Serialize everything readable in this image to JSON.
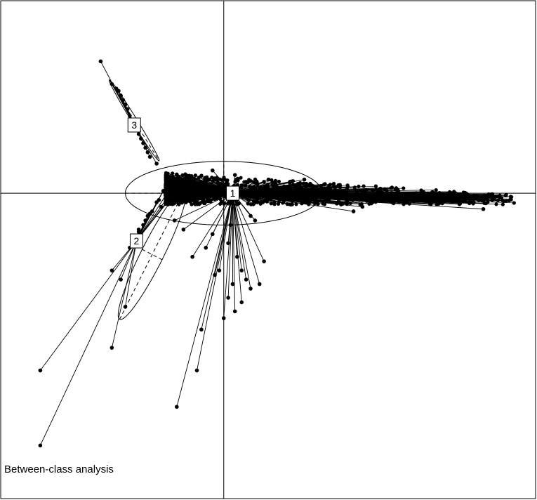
{
  "chart_data": {
    "type": "scatter",
    "title": "",
    "caption": "Between-class analysis",
    "xlabel": "",
    "ylabel": "",
    "xlim": [
      -1.0,
      1.4
    ],
    "ylim": [
      -1.35,
      0.85
    ],
    "grid": false,
    "legend": "none",
    "point_color": "#000000",
    "classes": [
      {
        "label": "1",
        "centroid": [
          0.04,
          0.0
        ],
        "ellipse": {
          "center": [
            0.0,
            0.0
          ],
          "rx": 0.44,
          "ry": 0.14,
          "angle": 0
        },
        "points": [
          [
            0.2,
            0.06
          ],
          [
            0.27,
            0.03
          ],
          [
            0.33,
            0.0
          ],
          [
            0.4,
            0.0
          ],
          [
            0.48,
            -0.02
          ],
          [
            0.55,
            -0.04
          ],
          [
            0.62,
            -0.06
          ],
          [
            0.7,
            0.02
          ],
          [
            0.78,
            0.01
          ],
          [
            0.86,
            0.0
          ],
          [
            0.94,
            0.0
          ],
          [
            1.02,
            -0.01
          ],
          [
            1.08,
            -0.03
          ],
          [
            1.12,
            -0.02
          ],
          [
            1.16,
            -0.07
          ],
          [
            1.2,
            -0.03
          ],
          [
            1.26,
            -0.01
          ],
          [
            0.58,
            -0.08
          ],
          [
            0.3,
            -0.05
          ],
          [
            0.15,
            -0.04
          ],
          [
            -0.1,
            0.05
          ],
          [
            -0.15,
            0.02
          ],
          [
            -0.2,
            0.0
          ],
          [
            -0.12,
            -0.04
          ],
          [
            -0.05,
            0.1
          ],
          [
            0.05,
            0.08
          ],
          [
            0.1,
            0.05
          ],
          [
            -0.18,
            0.06
          ],
          [
            0.36,
            0.06
          ],
          [
            0.52,
            0.03
          ],
          [
            -0.05,
            -0.18
          ],
          [
            -0.08,
            -0.24
          ],
          [
            -0.14,
            -0.28
          ],
          [
            0.02,
            -0.22
          ],
          [
            0.06,
            -0.28
          ],
          [
            0.08,
            -0.34
          ],
          [
            0.1,
            -0.38
          ],
          [
            0.12,
            -0.42
          ],
          [
            0.04,
            -0.4
          ],
          [
            0.02,
            -0.46
          ],
          [
            0.05,
            -0.52
          ],
          [
            0.16,
            -0.4
          ],
          [
            -0.02,
            -0.34
          ],
          [
            0.0,
            -0.55
          ],
          [
            -0.1,
            -0.6
          ],
          [
            -0.12,
            -0.78
          ],
          [
            -0.21,
            -0.94
          ],
          [
            -0.04,
            -0.36
          ],
          [
            -0.18,
            -0.16
          ],
          [
            0.03,
            -0.14
          ],
          [
            0.12,
            -0.1
          ],
          [
            0.14,
            -0.12
          ],
          [
            -0.22,
            -0.12
          ],
          [
            0.08,
            -0.48
          ],
          [
            0.18,
            -0.3
          ]
        ]
      },
      {
        "label": "2",
        "centroid": [
          -0.39,
          -0.21
        ],
        "ellipse": {
          "center": [
            -0.32,
            -0.27
          ],
          "rx": 0.32,
          "ry": 0.05,
          "angle": 63
        },
        "points": [
          [
            -0.82,
            -0.78
          ],
          [
            -0.5,
            -0.68
          ],
          [
            -0.44,
            -0.5
          ],
          [
            -0.46,
            -0.38
          ],
          [
            -0.5,
            -0.34
          ],
          [
            -0.34,
            -0.1
          ],
          [
            -0.32,
            -0.08
          ],
          [
            -0.36,
            -0.14
          ],
          [
            -0.38,
            -0.17
          ],
          [
            -0.4,
            -0.2
          ],
          [
            -0.41,
            -0.22
          ],
          [
            -0.3,
            -0.04
          ],
          [
            -0.27,
            0.01
          ],
          [
            -0.25,
            0.05
          ],
          [
            -0.28,
            -0.06
          ],
          [
            -0.24,
            -0.02
          ],
          [
            -0.22,
            0.0
          ],
          [
            -0.35,
            -0.12
          ],
          [
            -0.82,
            -1.11
          ],
          [
            -0.42,
            -0.24
          ],
          [
            -0.29,
            -0.03
          ],
          [
            -0.26,
            -0.01
          ],
          [
            -0.38,
            -0.16
          ],
          [
            -0.33,
            -0.09
          ],
          [
            -0.23,
            0.01
          ]
        ]
      },
      {
        "label": "3",
        "centroid": [
          -0.4,
          0.3
        ],
        "ellipse": {
          "center": [
            -0.4,
            0.32
          ],
          "rx": 0.21,
          "ry": 0.012,
          "angle": -58
        },
        "points": [
          [
            -0.55,
            0.58
          ],
          [
            -0.5,
            0.48
          ],
          [
            -0.48,
            0.46
          ],
          [
            -0.47,
            0.45
          ],
          [
            -0.46,
            0.43
          ],
          [
            -0.45,
            0.41
          ],
          [
            -0.44,
            0.39
          ],
          [
            -0.43,
            0.37
          ],
          [
            -0.42,
            0.34
          ],
          [
            -0.41,
            0.32
          ],
          [
            -0.4,
            0.3
          ],
          [
            -0.39,
            0.28
          ],
          [
            -0.38,
            0.26
          ],
          [
            -0.37,
            0.24
          ],
          [
            -0.36,
            0.22
          ],
          [
            -0.35,
            0.2
          ],
          [
            -0.34,
            0.18
          ],
          [
            -0.33,
            0.16
          ],
          [
            -0.3,
            0.13
          ]
        ]
      }
    ],
    "dense_cloud": {
      "class": "1",
      "x_range": [
        -0.26,
        1.3
      ],
      "y_range": [
        -0.05,
        0.09
      ],
      "description_shown": false
    }
  }
}
